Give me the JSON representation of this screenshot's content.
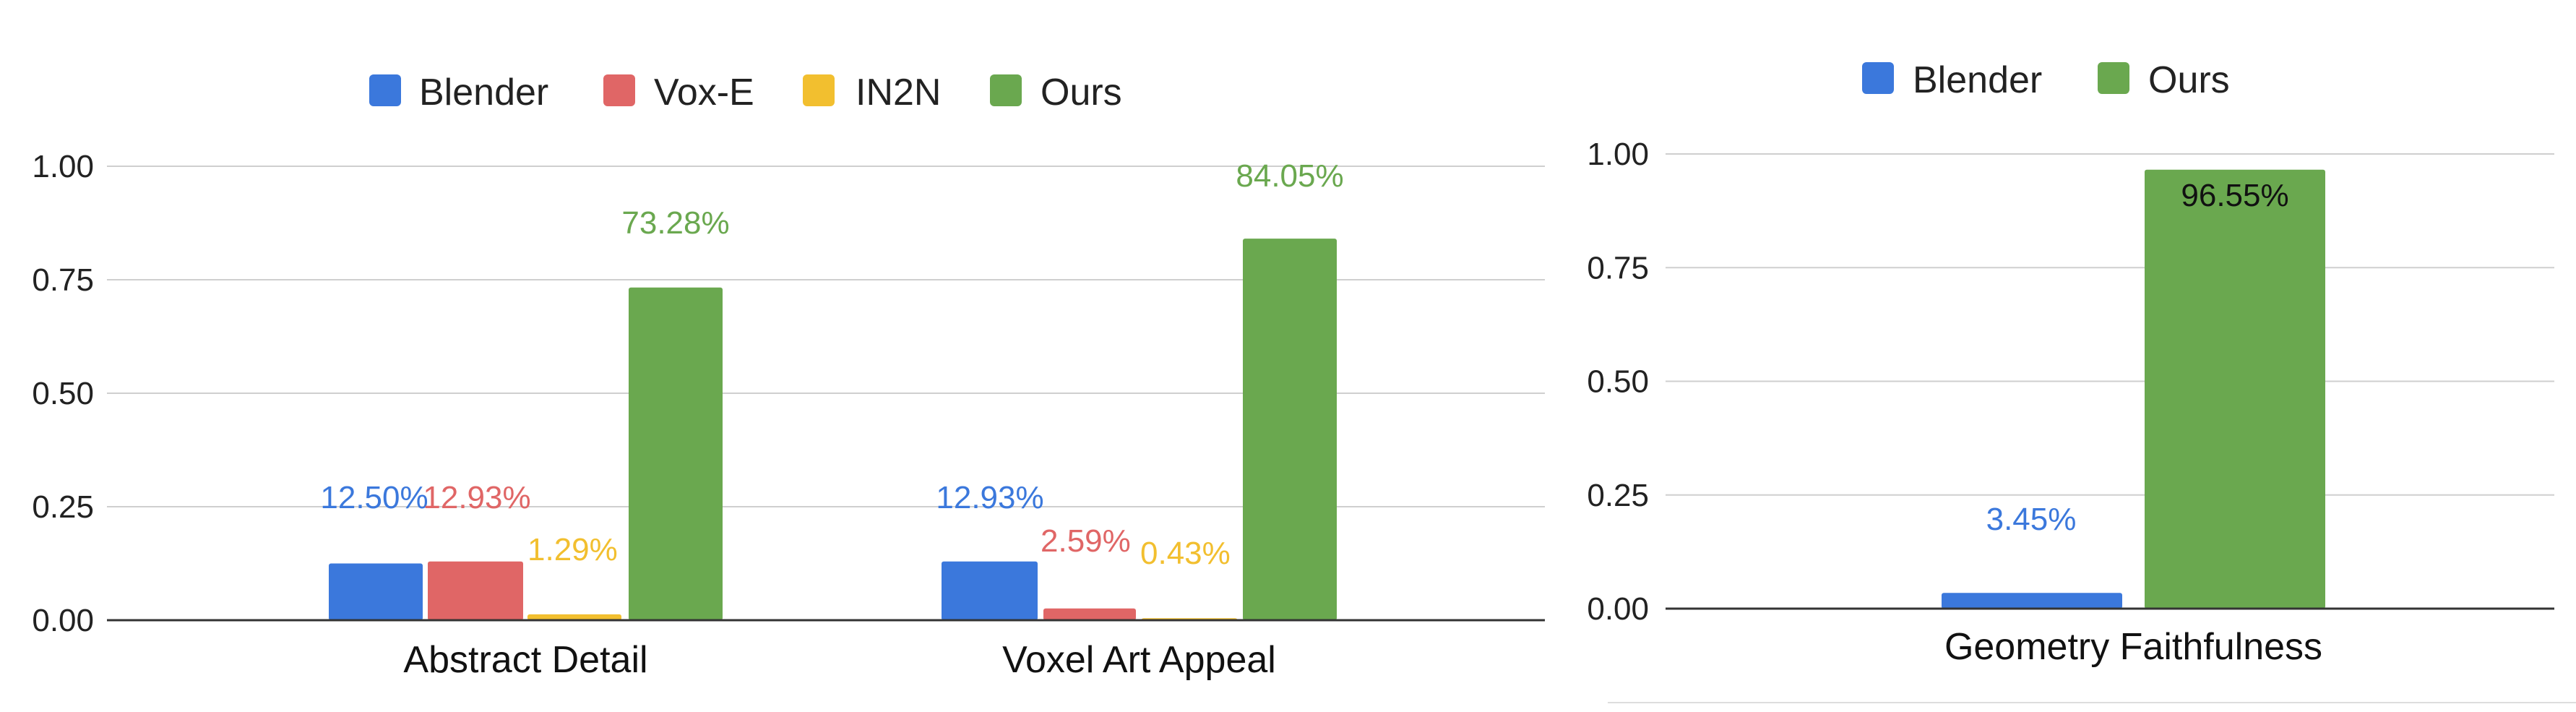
{
  "chart_data": [
    {
      "type": "bar",
      "categories": [
        "Abstract Detail",
        "Voxel Art Appeal"
      ],
      "series": [
        {
          "name": "Blender",
          "color": "#3B78DC",
          "values": [
            0.125,
            0.1293
          ],
          "labels": [
            "12.50%",
            "12.93%"
          ]
        },
        {
          "name": "Vox-E",
          "color": "#E06666",
          "values": [
            0.1293,
            0.0259
          ],
          "labels": [
            "12.93%",
            "2.59%"
          ]
        },
        {
          "name": "IN2N",
          "color": "#F2BF2F",
          "values": [
            0.0129,
            0.0043
          ],
          "labels": [
            "1.29%",
            "0.43%"
          ]
        },
        {
          "name": "Ours",
          "color": "#6AA84F",
          "values": [
            0.7328,
            0.8405
          ],
          "labels": [
            "73.28%",
            "84.05%"
          ]
        }
      ],
      "yticks": [
        "0.00",
        "0.25",
        "0.50",
        "0.75",
        "1.00"
      ],
      "ylim": [
        0,
        1
      ],
      "grid": true,
      "legend": "top-center"
    },
    {
      "type": "bar",
      "categories": [
        "Geometry Faithfulness"
      ],
      "series": [
        {
          "name": "Blender",
          "color": "#3B78DC",
          "values": [
            0.0345
          ],
          "labels": [
            "3.45%"
          ]
        },
        {
          "name": "Ours",
          "color": "#6AA84F",
          "values": [
            0.9655
          ],
          "labels": [
            "96.55%"
          ]
        }
      ],
      "yticks": [
        "0.00",
        "0.25",
        "0.50",
        "0.75",
        "1.00"
      ],
      "ylim": [
        0,
        1
      ],
      "grid": true,
      "legend": "top-center"
    }
  ]
}
